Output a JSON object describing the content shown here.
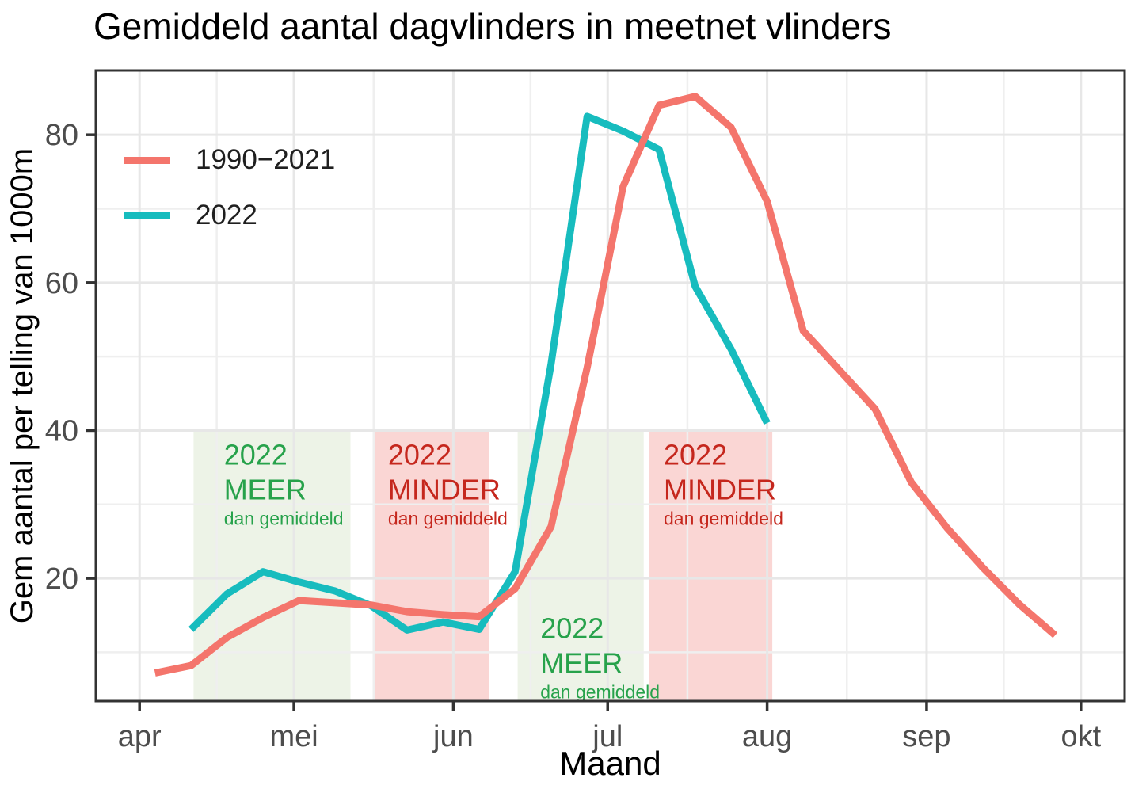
{
  "title": "Gemiddeld aantal dagvlinders in meetnet vlinders",
  "axes": {
    "x_label": "Maand",
    "y_label": "Gem aantal per telling van 1000m"
  },
  "legend": {
    "position": "inside-top-left",
    "items": [
      {
        "label": "1990−2021",
        "color": "#F4756C"
      },
      {
        "label": "2022",
        "color": "#17BCBE"
      }
    ]
  },
  "chart_data": {
    "type": "line",
    "title": "Gemiddeld aantal dagvlinders in meetnet vlinders",
    "xlabel": "Maand",
    "ylabel": "Gem aantal per telling van 1000m",
    "x_unit": "days since 1 april (weekly observations)",
    "xlim": [
      -8.5,
      191.5
    ],
    "ylim": [
      3.4,
      88.7
    ],
    "grid": true,
    "x_ticks": [
      {
        "label": "apr",
        "day": 0
      },
      {
        "label": "mei",
        "day": 30
      },
      {
        "label": "jun",
        "day": 61
      },
      {
        "label": "jul",
        "day": 91
      },
      {
        "label": "aug",
        "day": 122
      },
      {
        "label": "sep",
        "day": 153
      },
      {
        "label": "okt",
        "day": 183
      }
    ],
    "x_minor_days": [
      15,
      45.5,
      76,
      106.5,
      137.5,
      168
    ],
    "y_ticks": [
      20,
      40,
      60,
      80
    ],
    "y_minor": [
      10,
      30,
      50,
      70
    ],
    "series": [
      {
        "name": "1990−2021",
        "color": "#F4756C",
        "points": [
          [
            3,
            7.2
          ],
          [
            10,
            8.2
          ],
          [
            17,
            12.0
          ],
          [
            24,
            14.7
          ],
          [
            31,
            17.0
          ],
          [
            38,
            16.7
          ],
          [
            45,
            16.4
          ],
          [
            52,
            15.5
          ],
          [
            59,
            15.1
          ],
          [
            66,
            14.8
          ],
          [
            73,
            18.6
          ],
          [
            80,
            27.0
          ],
          [
            87,
            48.5
          ],
          [
            94,
            73.0
          ],
          [
            101,
            84.0
          ],
          [
            108,
            85.2
          ],
          [
            115,
            81.0
          ],
          [
            122,
            71.0
          ],
          [
            129,
            53.5
          ],
          [
            136,
            48.2
          ],
          [
            143,
            42.9
          ],
          [
            150,
            33.0
          ],
          [
            157,
            26.8
          ],
          [
            164,
            21.4
          ],
          [
            171,
            16.5
          ],
          [
            178,
            12.3
          ]
        ]
      },
      {
        "name": "2022",
        "color": "#17BCBE",
        "points": [
          [
            10,
            13.1
          ],
          [
            17,
            17.9
          ],
          [
            24,
            20.9
          ],
          [
            31,
            19.5
          ],
          [
            38,
            18.3
          ],
          [
            45,
            16.3
          ],
          [
            52,
            13.0
          ],
          [
            59,
            14.1
          ],
          [
            66,
            13.1
          ],
          [
            73,
            20.9
          ],
          [
            80,
            49.0
          ],
          [
            87,
            82.5
          ],
          [
            94,
            80.5
          ],
          [
            101,
            78.0
          ],
          [
            108,
            59.5
          ],
          [
            115,
            51.0
          ],
          [
            122,
            41.0
          ]
        ]
      }
    ],
    "regions": [
      {
        "day_start": 10.5,
        "day_end": 41,
        "value_top": 40,
        "fill": "#EDF3E7",
        "text_color": "#27A24B",
        "label_day": 16.4,
        "label_value": 35.4,
        "lines": [
          "2022",
          "MEER",
          "dan gemiddeld"
        ]
      },
      {
        "day_start": 45.5,
        "day_end": 68,
        "value_top": 40,
        "fill": "#FAD6D4",
        "text_color": "#C5271D",
        "label_day": 48.3,
        "label_value": 35.4,
        "lines": [
          "2022",
          "MINDER",
          "dan gemiddeld"
        ]
      },
      {
        "day_start": 73.5,
        "day_end": 98,
        "value_top": 40,
        "fill": "#EDF3E7",
        "text_color": "#27A24B",
        "label_day": 77.9,
        "label_value": 11.9,
        "lines": [
          "2022",
          "MEER",
          "dan gemiddeld"
        ]
      },
      {
        "day_start": 99,
        "day_end": 123,
        "value_top": 40,
        "fill": "#FAD6D4",
        "text_color": "#C5271D",
        "label_day": 101.9,
        "label_value": 35.4,
        "lines": [
          "2022",
          "MINDER",
          "dan gemiddeld"
        ]
      }
    ]
  }
}
